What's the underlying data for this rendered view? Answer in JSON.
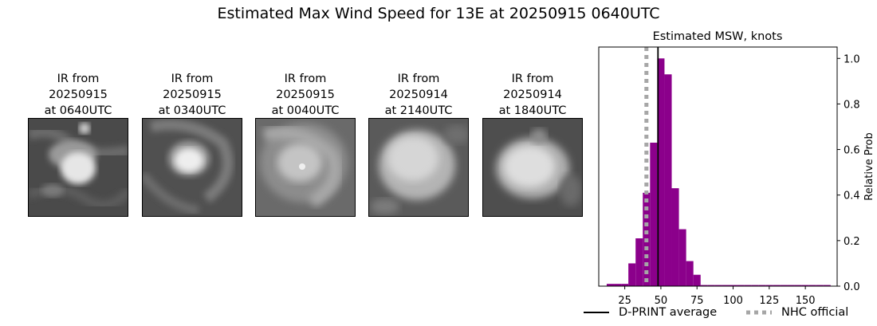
{
  "figure_title": "Estimated Max Wind Speed for 13E at 20250915 0640UTC",
  "ir_panels": [
    {
      "line1": "IR from",
      "line2": "20250915",
      "line3": "at 0640UTC"
    },
    {
      "line1": "IR from",
      "line2": "20250915",
      "line3": "at 0340UTC"
    },
    {
      "line1": "IR from",
      "line2": "20250915",
      "line3": "at 0040UTC"
    },
    {
      "line1": "IR from",
      "line2": "20250914",
      "line3": "at 2140UTC"
    },
    {
      "line1": "IR from",
      "line2": "20250914",
      "line3": "at 1840UTC"
    }
  ],
  "chart_data": {
    "type": "bar",
    "title": "Estimated MSW, knots",
    "xlabel": "",
    "ylabel": "Relative Prob",
    "xlim": [
      7,
      172
    ],
    "ylim": [
      0,
      1.05
    ],
    "xticks": [
      25,
      50,
      75,
      100,
      125,
      150
    ],
    "yticks": [
      0.0,
      0.2,
      0.4,
      0.6,
      0.8,
      1.0
    ],
    "bin_width": 5,
    "bar_color": "#8b008b",
    "bins": [
      {
        "x": 15,
        "y": 0.01
      },
      {
        "x": 20,
        "y": 0.01
      },
      {
        "x": 25,
        "y": 0.01
      },
      {
        "x": 30,
        "y": 0.1
      },
      {
        "x": 35,
        "y": 0.21
      },
      {
        "x": 40,
        "y": 0.41
      },
      {
        "x": 45,
        "y": 0.63
      },
      {
        "x": 50,
        "y": 1.0
      },
      {
        "x": 55,
        "y": 0.93
      },
      {
        "x": 60,
        "y": 0.43
      },
      {
        "x": 65,
        "y": 0.25
      },
      {
        "x": 70,
        "y": 0.11
      },
      {
        "x": 75,
        "y": 0.05
      },
      {
        "x": 80,
        "y": 0.005
      },
      {
        "x": 85,
        "y": 0.005
      },
      {
        "x": 90,
        "y": 0.005
      },
      {
        "x": 95,
        "y": 0.005
      },
      {
        "x": 100,
        "y": 0.005
      },
      {
        "x": 105,
        "y": 0.005
      },
      {
        "x": 110,
        "y": 0.005
      },
      {
        "x": 115,
        "y": 0.005
      },
      {
        "x": 120,
        "y": 0.005
      },
      {
        "x": 125,
        "y": 0.005
      },
      {
        "x": 130,
        "y": 0.005
      },
      {
        "x": 135,
        "y": 0.005
      },
      {
        "x": 140,
        "y": 0.005
      },
      {
        "x": 145,
        "y": 0.005
      },
      {
        "x": 150,
        "y": 0.005
      },
      {
        "x": 155,
        "y": 0.005
      },
      {
        "x": 160,
        "y": 0.005
      },
      {
        "x": 165,
        "y": 0.005
      }
    ],
    "dprint_average": 48,
    "nhc_official": 40,
    "legend": {
      "dprint_label": "D-PRINT average",
      "nhc_label": "NHC official",
      "placement": "bottom"
    }
  }
}
